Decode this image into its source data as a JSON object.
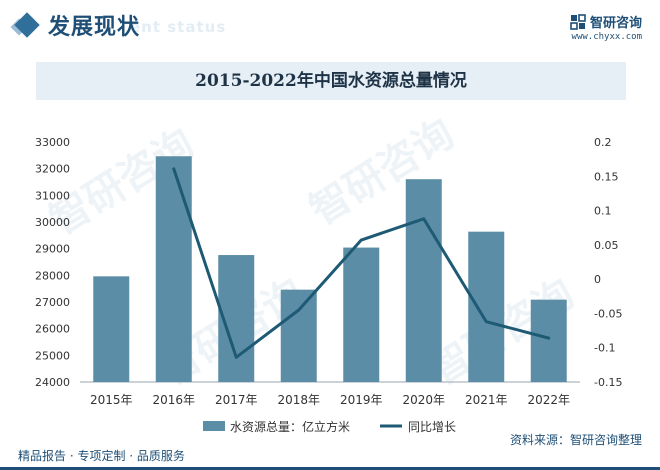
{
  "header": {
    "title": "发展现状",
    "ghost_text": "ent status",
    "brand_name": "智研咨询",
    "brand_url": "www.chyxx.com"
  },
  "watermark_text": "智研咨询",
  "colors": {
    "bar": "#5b8ea6",
    "line": "#1e5a74",
    "accent": "#1f4f76"
  },
  "chart_data": {
    "type": "bar",
    "title": "2015-2022年中国水资源总量情况",
    "categories": [
      "2015年",
      "2016年",
      "2017年",
      "2018年",
      "2019年",
      "2020年",
      "2021年",
      "2022年"
    ],
    "series": [
      {
        "name": "水资源总量：亿立方米",
        "type": "bar",
        "axis": "left",
        "values": [
          27963,
          32466,
          28761,
          27463,
          29041,
          31605,
          29638,
          27088
        ]
      },
      {
        "name": "同比增长",
        "type": "line",
        "axis": "right",
        "values": [
          null,
          0.161,
          -0.114,
          -0.045,
          0.057,
          0.088,
          -0.062,
          -0.086
        ]
      }
    ],
    "y_left": {
      "ylim": [
        24000,
        33000
      ],
      "ticks": [
        "24000",
        "25000",
        "26000",
        "27000",
        "28000",
        "29000",
        "30000",
        "31000",
        "32000",
        "33000"
      ]
    },
    "y_right": {
      "ylim": [
        -0.15,
        0.2
      ],
      "ticks": [
        "-0.15",
        "-0.1",
        "-0.05",
        "0",
        "0.05",
        "0.1",
        "0.15",
        "0.2"
      ]
    },
    "legend_placement": "bottom",
    "grid": false
  },
  "footer": {
    "left_text": "精品报告 · 专项定制 · 品质服务",
    "source_text": "资料来源：智研咨询整理"
  }
}
